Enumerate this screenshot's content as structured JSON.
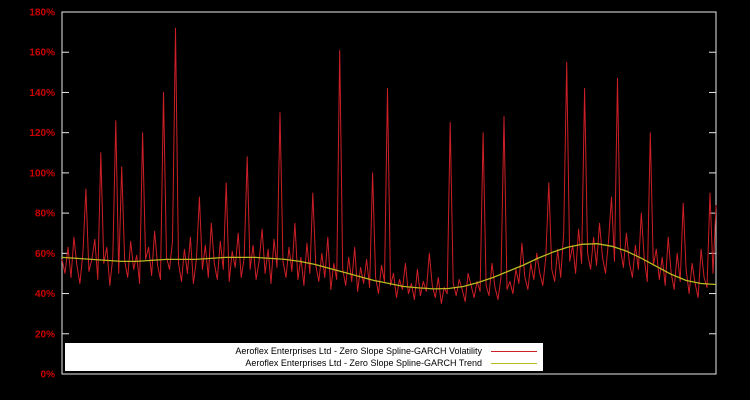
{
  "figure": {
    "background": "#000000",
    "border_color": "#e8e8e8"
  },
  "y_axis": {
    "label_color": "#cc0000",
    "tick_labels": [
      "0%",
      "20%",
      "40%",
      "60%",
      "80%",
      "100%",
      "120%",
      "140%",
      "160%",
      "180%"
    ]
  },
  "chart_data": {
    "type": "line",
    "title": "",
    "xlabel": "",
    "ylabel": "",
    "ylim": [
      0,
      180
    ],
    "yticks": [
      0,
      20,
      40,
      60,
      80,
      100,
      120,
      140,
      160,
      180
    ],
    "grid": false,
    "legend_position": "bottom-center",
    "series": [
      {
        "name": "Aeroflex Enterprises Ltd - Zero Slope Spline-GARCH Volatility",
        "color": "#cc1f26",
        "values": [
          57,
          50,
          63,
          48,
          68,
          54,
          45,
          60,
          92,
          51,
          57,
          67,
          47,
          110,
          55,
          63,
          44,
          58,
          126,
          50,
          103,
          56,
          48,
          66,
          52,
          59,
          45,
          120,
          57,
          63,
          49,
          71,
          54,
          47,
          140,
          58,
          52,
          66,
          172,
          55,
          46,
          62,
          50,
          68,
          45,
          57,
          88,
          52,
          64,
          48,
          75,
          55,
          47,
          66,
          52,
          95,
          46,
          61,
          53,
          70,
          48,
          58,
          108,
          52,
          64,
          47,
          56,
          72,
          50,
          62,
          45,
          67,
          53,
          130,
          56,
          48,
          63,
          51,
          75,
          47,
          58,
          44,
          65,
          50,
          90,
          54,
          46,
          60,
          48,
          68,
          42,
          55,
          47,
          161,
          52,
          44,
          58,
          46,
          63,
          41,
          53,
          45,
          57,
          43,
          100,
          48,
          40,
          54,
          46,
          142,
          44,
          50,
          38,
          47,
          42,
          55,
          40,
          45,
          37,
          52,
          39,
          46,
          41,
          60,
          44,
          38,
          48,
          35,
          43,
          40,
          125,
          45,
          39,
          47,
          42,
          36,
          50,
          44,
          38,
          46,
          41,
          120,
          44,
          39,
          55,
          43,
          37,
          48,
          128,
          42,
          46,
          40,
          52,
          45,
          65,
          48,
          42,
          55,
          47,
          60,
          50,
          44,
          58,
          95,
          52,
          46,
          62,
          48,
          70,
          155,
          56,
          64,
          50,
          72,
          55,
          142,
          60,
          52,
          68,
          54,
          75,
          58,
          50,
          66,
          88,
          56,
          147,
          62,
          53,
          70,
          55,
          48,
          64,
          52,
          80,
          57,
          46,
          120,
          54,
          62,
          47,
          58,
          44,
          68,
          50,
          42,
          60,
          46,
          85,
          52,
          40,
          55,
          45,
          38,
          62,
          48,
          43,
          90,
          50,
          84
        ]
      },
      {
        "name": "Aeroflex Enterprises Ltd - Zero Slope Spline-GARCH Trend",
        "color": "#b8ba20",
        "values": [
          58,
          57.5,
          57,
          56.5,
          56,
          56,
          56.5,
          57,
          57,
          57,
          57.5,
          58,
          58,
          58,
          57.5,
          57,
          56,
          54.5,
          52.5,
          50.5,
          48.5,
          46.5,
          45,
          43.5,
          42.8,
          42.3,
          42.5,
          43.5,
          45.5,
          48,
          51,
          54,
          57.5,
          60.5,
          63,
          64.5,
          64.8,
          63.5,
          61,
          57.5,
          53.5,
          49.5,
          46.5,
          45,
          44.5
        ]
      }
    ]
  }
}
